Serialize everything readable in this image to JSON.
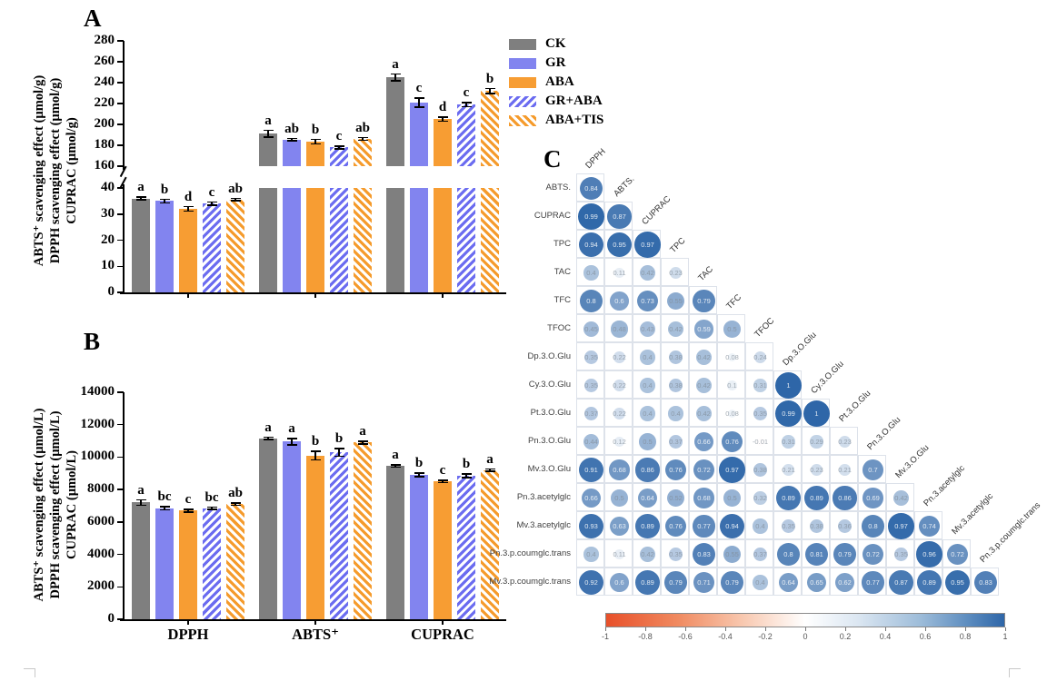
{
  "figure": {
    "panel_a_label": "A",
    "panel_b_label": "B",
    "panel_c_label": "C"
  },
  "legend": {
    "items": [
      {
        "label": "CK",
        "pattern": "solid",
        "color": "#7f7f7f"
      },
      {
        "label": "GR",
        "pattern": "solid",
        "color": "#8284ef"
      },
      {
        "label": "ABA",
        "pattern": "solid",
        "color": "#f79d33"
      },
      {
        "label": "GR+ABA",
        "pattern": "hatch",
        "color": "#6b6cf0"
      },
      {
        "label": "ABA+TIS",
        "pattern": "hatch",
        "color": "#f59b2c"
      }
    ]
  },
  "chart_data": [
    {
      "id": "A",
      "type": "bar",
      "unit": "µmol/g",
      "ylabel_lines": [
        "ABTS⁺ scavenging effect (µmol/g)",
        "DPPH scavenging effect (µmol/g)",
        "CUPRAC (µmol/g)"
      ],
      "categories": [
        "DPPH",
        "ABTS⁺",
        "CUPRAC"
      ],
      "category_labels_shown": false,
      "broken_axis": {
        "lower_range": [
          0,
          40
        ],
        "upper_range": [
          160,
          280
        ],
        "lower_ticks": [
          "0",
          "10",
          "20",
          "30",
          "40"
        ],
        "upper_ticks": [
          "160",
          "180",
          "200",
          "220",
          "240",
          "260",
          "280"
        ]
      },
      "series": [
        {
          "name": "CK",
          "values": [
            36,
            191,
            245
          ],
          "errors": [
            0.8,
            4,
            4
          ],
          "sig_letters": [
            "a",
            "a",
            "a"
          ]
        },
        {
          "name": "GR",
          "values": [
            35,
            185.5,
            221
          ],
          "errors": [
            1,
            1.5,
            5
          ],
          "sig_letters": [
            "b",
            "ab",
            "c"
          ]
        },
        {
          "name": "ABA",
          "values": [
            32,
            183.5,
            205
          ],
          "errors": [
            1.2,
            3,
            2.5
          ],
          "sig_letters": [
            "d",
            "b",
            "d"
          ]
        },
        {
          "name": "GR+ABA",
          "values": [
            34,
            178,
            219
          ],
          "errors": [
            0.8,
            2,
            2.5
          ],
          "sig_letters": [
            "c",
            "c",
            "c"
          ]
        },
        {
          "name": "ABA+TIS",
          "values": [
            35.5,
            186,
            232
          ],
          "errors": [
            0.6,
            2,
            3
          ],
          "sig_letters": [
            "ab",
            "ab",
            "b"
          ]
        }
      ]
    },
    {
      "id": "B",
      "type": "bar",
      "unit": "µmol/L",
      "ylabel_lines": [
        "ABTS⁺ scavenging effect (µmol/L)",
        "DPPH scavenging effect (µmol/L)",
        "CUPRAC (µmol/L)"
      ],
      "categories": [
        "DPPH",
        "ABTS⁺",
        "CUPRAC"
      ],
      "category_labels_shown": true,
      "ylim": [
        0,
        14000
      ],
      "yticks": [
        "0",
        "2000",
        "4000",
        "6000",
        "8000",
        "10000",
        "12000",
        "14000"
      ],
      "series": [
        {
          "name": "CK",
          "values": [
            7200,
            11150,
            9450
          ],
          "errors": [
            200,
            80,
            80
          ],
          "sig_letters": [
            "a",
            "a",
            "a"
          ]
        },
        {
          "name": "GR",
          "values": [
            6850,
            10950,
            8900
          ],
          "errors": [
            150,
            250,
            150
          ],
          "sig_letters": [
            "bc",
            "a",
            "b"
          ]
        },
        {
          "name": "ABA",
          "values": [
            6700,
            10100,
            8500
          ],
          "errors": [
            120,
            300,
            100
          ],
          "sig_letters": [
            "c",
            "b",
            "c"
          ]
        },
        {
          "name": "GR+ABA",
          "values": [
            6850,
            10300,
            8850
          ],
          "errors": [
            80,
            280,
            150
          ],
          "sig_letters": [
            "bc",
            "b",
            "b"
          ]
        },
        {
          "name": "ABA+TIS",
          "values": [
            7100,
            10900,
            9200
          ],
          "errors": [
            100,
            120,
            120
          ],
          "sig_letters": [
            "ab",
            "a",
            "a"
          ]
        }
      ]
    },
    {
      "id": "C",
      "type": "correlation-matrix",
      "variables": [
        "DPPH",
        "ABTS.",
        "CUPRAC",
        "TPC",
        "TAC",
        "TFC",
        "TFOC",
        "Dp.3.O.Glu",
        "Cy.3.O.Glu",
        "Pt.3.O.Glu",
        "Pn.3.O.Glu",
        "Mv.3.O.Glu",
        "Pn.3.acetylglc",
        "Mv.3.acetylglc",
        "Pn.3.p.coumglc.trans",
        "Mv.3.p.coumglc.trans"
      ],
      "lower_triangle_rows": [
        [
          0.84
        ],
        [
          0.99,
          0.87
        ],
        [
          0.94,
          0.95,
          0.97
        ],
        [
          0.4,
          0.11,
          0.42,
          0.23
        ],
        [
          0.8,
          0.6,
          0.73,
          0.55,
          0.79
        ],
        [
          0.45,
          0.48,
          0.43,
          0.42,
          0.59,
          0.5
        ],
        [
          0.35,
          0.22,
          0.4,
          0.38,
          0.42,
          0.08,
          0.24
        ],
        [
          0.35,
          0.22,
          0.4,
          0.38,
          0.42,
          0.1,
          0.31,
          1
        ],
        [
          0.37,
          0.22,
          0.4,
          0.4,
          0.42,
          0.08,
          0.35,
          0.99,
          1
        ],
        [
          0.44,
          0.12,
          0.5,
          0.37,
          0.66,
          0.76,
          -0.01,
          0.31,
          0.29,
          0.23
        ],
        [
          0.91,
          0.68,
          0.86,
          0.76,
          0.72,
          0.97,
          0.38,
          0.21,
          0.23,
          0.21,
          0.7
        ],
        [
          0.66,
          0.5,
          0.64,
          0.52,
          0.68,
          0.5,
          0.32,
          0.89,
          0.89,
          0.86,
          0.69,
          0.42
        ],
        [
          0.93,
          0.63,
          0.89,
          0.76,
          0.77,
          0.94,
          0.4,
          0.35,
          0.38,
          0.36,
          0.8,
          0.97,
          0.74
        ],
        [
          0.4,
          0.11,
          0.42,
          0.35,
          0.83,
          0.55,
          0.37,
          0.8,
          0.81,
          0.79,
          0.72,
          0.35,
          0.96,
          0.72
        ],
        [
          0.92,
          0.6,
          0.89,
          0.79,
          0.71,
          0.79,
          0.4,
          0.64,
          0.65,
          0.62,
          0.77,
          0.87,
          0.89,
          0.95,
          0.83
        ]
      ],
      "colorbar": {
        "min": -1,
        "max": 1,
        "ticks": [
          "-1",
          "-0.8",
          "-0.6",
          "-0.4",
          "-0.2",
          "0",
          "0.2",
          "0.4",
          "0.6",
          "0.8",
          "1"
        ],
        "negative_color": "#e8502a",
        "positive_color": "#2e66a8"
      }
    }
  ]
}
